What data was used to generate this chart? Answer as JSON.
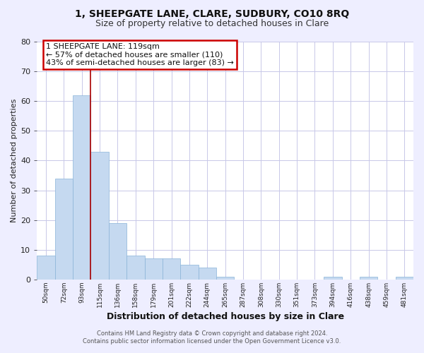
{
  "title_line1": "1, SHEEPGATE LANE, CLARE, SUDBURY, CO10 8RQ",
  "title_line2": "Size of property relative to detached houses in Clare",
  "xlabel": "Distribution of detached houses by size in Clare",
  "ylabel": "Number of detached properties",
  "bar_color": "#c5d9f0",
  "bar_edge_color": "#8ab4d8",
  "vline_color": "#aa0000",
  "annotation_text": "1 SHEEPGATE LANE: 119sqm\n← 57% of detached houses are smaller (110)\n43% of semi-detached houses are larger (83) →",
  "categories": [
    "50sqm",
    "72sqm",
    "93sqm",
    "115sqm",
    "136sqm",
    "158sqm",
    "179sqm",
    "201sqm",
    "222sqm",
    "244sqm",
    "265sqm",
    "287sqm",
    "308sqm",
    "330sqm",
    "351sqm",
    "373sqm",
    "394sqm",
    "416sqm",
    "438sqm",
    "459sqm",
    "481sqm"
  ],
  "values": [
    8,
    34,
    62,
    43,
    19,
    8,
    7,
    7,
    5,
    4,
    1,
    0,
    0,
    0,
    0,
    0,
    1,
    0,
    1,
    0,
    1
  ],
  "ylim": [
    0,
    80
  ],
  "yticks": [
    0,
    10,
    20,
    30,
    40,
    50,
    60,
    70,
    80
  ],
  "vline_index": 3,
  "footer_line1": "Contains HM Land Registry data © Crown copyright and database right 2024.",
  "footer_line2": "Contains public sector information licensed under the Open Government Licence v3.0.",
  "background_color": "#eeeeff",
  "plot_bg_color": "#ffffff",
  "grid_color": "#c8c8e8"
}
